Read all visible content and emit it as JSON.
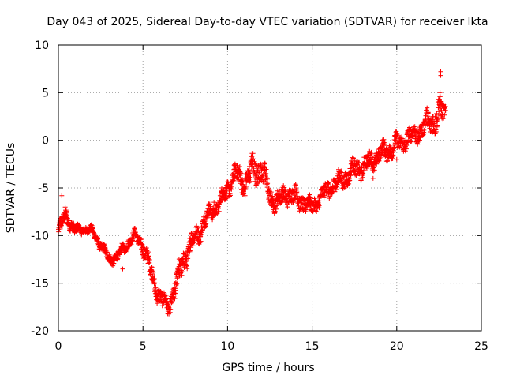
{
  "chart_data": {
    "type": "scatter",
    "title": "Day 043 of 2025, Sidereal Day-to-day VTEC variation (SDTVAR) for receiver lkta",
    "xlabel": "GPS time / hours",
    "ylabel": "SDTVAR / TECUs",
    "xlim": [
      0,
      25
    ],
    "ylim": [
      -20,
      10
    ],
    "xticks": [
      0,
      5,
      10,
      15,
      20,
      25
    ],
    "yticks": [
      -20,
      -15,
      -10,
      -5,
      0,
      5,
      10
    ],
    "grid": true,
    "marker": "+",
    "color": "#ff0000",
    "series": [
      {
        "name": "SDTVAR",
        "trend_x": [
          0.0,
          0.2,
          0.4,
          0.6,
          0.8,
          1.0,
          1.5,
          2.0,
          2.5,
          3.0,
          3.5,
          4.0,
          4.5,
          5.0,
          5.5,
          6.0,
          6.5,
          7.0,
          7.5,
          8.0,
          8.5,
          9.0,
          9.5,
          10.0,
          10.5,
          11.0,
          11.5,
          12.0,
          12.5,
          13.0,
          13.5,
          14.0,
          14.5,
          15.0,
          15.5,
          16.0,
          16.5,
          17.0,
          17.5,
          18.0,
          18.5,
          19.0,
          19.5,
          20.0,
          20.5,
          21.0,
          21.5,
          22.0,
          22.5,
          22.9
        ],
        "trend_y": [
          -9.5,
          -9.0,
          -7.8,
          -8.2,
          -9.0,
          -9.5,
          -9.3,
          -9.5,
          -11.0,
          -12.5,
          -12.2,
          -11.0,
          -10.0,
          -11.0,
          -14.0,
          -16.5,
          -17.5,
          -15.0,
          -12.0,
          -10.5,
          -9.0,
          -7.5,
          -6.8,
          -5.0,
          -3.5,
          -4.5,
          -3.0,
          -3.0,
          -6.0,
          -6.5,
          -5.5,
          -6.0,
          -6.5,
          -7.0,
          -6.0,
          -5.0,
          -4.5,
          -3.8,
          -3.0,
          -2.8,
          -2.2,
          -1.5,
          -1.0,
          -0.5,
          0.0,
          0.5,
          1.2,
          2.0,
          2.8,
          3.0
        ],
        "spread": [
          1.0,
          1.5,
          1.2,
          1.0,
          1.0,
          0.8,
          0.6,
          0.6,
          0.8,
          0.8,
          0.8,
          0.8,
          0.8,
          1.2,
          1.5,
          1.5,
          1.2,
          2.0,
          2.0,
          1.5,
          1.5,
          1.2,
          1.2,
          1.5,
          1.5,
          2.0,
          2.0,
          2.5,
          1.5,
          1.5,
          1.5,
          1.5,
          1.5,
          1.2,
          1.2,
          1.5,
          1.5,
          1.5,
          1.5,
          1.5,
          1.5,
          1.5,
          1.5,
          1.5,
          1.5,
          1.5,
          1.5,
          2.0,
          2.5,
          1.0
        ],
        "outliers": [
          [
            0.2,
            -5.8
          ],
          [
            22.6,
            7.2
          ],
          [
            22.6,
            6.8
          ],
          [
            3.8,
            -13.5
          ],
          [
            9.2,
            -6.5
          ],
          [
            17.8,
            -3.5
          ],
          [
            18.6,
            -4.0
          ],
          [
            20.0,
            -2.0
          ]
        ]
      }
    ]
  }
}
